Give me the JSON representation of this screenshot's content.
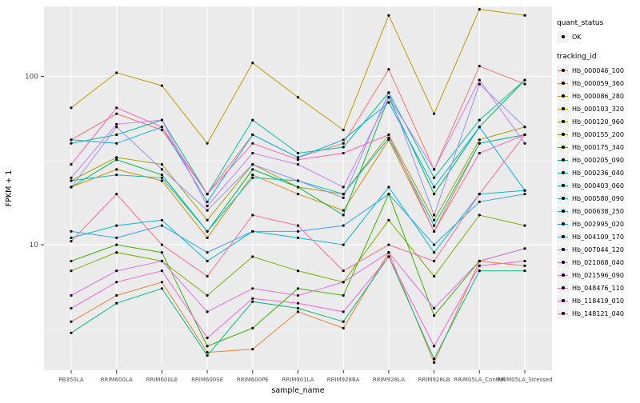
{
  "figure": {
    "background": "#FFFFFF",
    "panel_background": "#EBEBEB",
    "grid_major_color": "#FFFFFF",
    "grid_minor_color": "#F7F7F7",
    "tick_color": "#333333",
    "tick_label_color": "#4D4D4D",
    "axis_title_color": "#000000",
    "point_color": "#000000"
  },
  "chart_data": {
    "type": "line",
    "title": "",
    "xlabel": "sample_name",
    "ylabel": "FPKM + 1",
    "y_scale": "log10",
    "ylim": [
      1.8,
      260
    ],
    "y_ticks": [
      10,
      100
    ],
    "y_minor_ticks": [
      3.1623,
      31.623
    ],
    "grid": true,
    "legend_position": "right",
    "categories": [
      "PB350LA",
      "RRIM600LA",
      "RRIM600LE",
      "RRIM600SE",
      "RRIM600PE",
      "RRIM901LA",
      "RRIM928BA",
      "RRIM928LA",
      "RRIM928LB",
      "RRIM05LA_Control",
      "RRIM05LA_Stressed"
    ],
    "series": [
      {
        "name": "Hb_000046_100",
        "color": "#F8766D",
        "values": [
          42,
          60,
          48,
          20,
          45,
          33,
          40,
          110,
          28,
          115,
          90
        ]
      },
      {
        "name": "Hb_000059_360",
        "color": "#EA8331",
        "values": [
          3.5,
          5,
          6,
          2.3,
          2.4,
          4,
          3.2,
          9,
          2,
          8,
          7.5
        ]
      },
      {
        "name": "Hb_000086_280",
        "color": "#D89000",
        "values": [
          22,
          28,
          24,
          11,
          26,
          20,
          16,
          42,
          12,
          40,
          45
        ]
      },
      {
        "name": "Hb_000103_320",
        "color": "#C09B00",
        "values": [
          65,
          105,
          88,
          40,
          120,
          75,
          48,
          230,
          60,
          250,
          230
        ]
      },
      {
        "name": "Hb_000120_960",
        "color": "#A3A500",
        "values": [
          24,
          33,
          30,
          14,
          30,
          22,
          20,
          45,
          14,
          42,
          50
        ]
      },
      {
        "name": "Hb_000155_200",
        "color": "#7CAE00",
        "values": [
          7,
          9,
          8,
          5,
          8.5,
          7,
          6,
          14,
          6.5,
          15,
          13
        ]
      },
      {
        "name": "Hb_000175_340",
        "color": "#39B600",
        "values": [
          8,
          10,
          9,
          2.5,
          3.2,
          5.5,
          5,
          20,
          3.8,
          8,
          9.5
        ]
      },
      {
        "name": "Hb_000205_090",
        "color": "#00BB4E",
        "values": [
          22,
          32,
          26,
          12,
          28,
          22,
          15,
          75,
          20,
          50,
          95
        ]
      },
      {
        "name": "Hb_000236_040",
        "color": "#00BF7D",
        "values": [
          3,
          4.5,
          5.5,
          2.2,
          4.6,
          4.2,
          3.5,
          8.5,
          2.1,
          7,
          7
        ]
      },
      {
        "name": "Hb_000403_060",
        "color": "#00C1A3",
        "values": [
          40,
          45,
          55,
          20,
          55,
          35,
          38,
          80,
          25,
          55,
          95
        ]
      },
      {
        "name": "Hb_000580_090",
        "color": "#00BFC4",
        "values": [
          24,
          26,
          25,
          12,
          25,
          24,
          20,
          43,
          13,
          40,
          45
        ]
      },
      {
        "name": "Hb_000638_250",
        "color": "#00BAE0",
        "values": [
          11,
          13,
          14,
          8,
          12,
          11,
          10,
          22,
          9,
          20,
          21
        ]
      },
      {
        "name": "Hb_002995_020",
        "color": "#00B0F6",
        "values": [
          42,
          40,
          50,
          18,
          45,
          33,
          42,
          70,
          22,
          50,
          21
        ]
      },
      {
        "name": "Hb_004109_170",
        "color": "#35A2FF",
        "values": [
          12,
          11,
          13,
          9,
          12,
          12,
          13,
          20,
          10,
          18,
          20
        ]
      },
      {
        "name": "Hb_007044_120",
        "color": "#9590FF",
        "values": [
          22,
          50,
          28,
          16,
          30,
          24,
          19,
          80,
          15,
          90,
          50
        ]
      },
      {
        "name": "Hb_021068_040",
        "color": "#C77CFF",
        "values": [
          25,
          52,
          55,
          17,
          35,
          30,
          22,
          75,
          28,
          95,
          40
        ]
      },
      {
        "name": "Hb_021596_090",
        "color": "#E76BF3",
        "values": [
          5,
          7,
          8,
          4,
          5.5,
          5,
          6,
          9,
          4.2,
          8,
          9.5
        ]
      },
      {
        "name": "Hb_048476_110",
        "color": "#FA62DB",
        "values": [
          4.2,
          6,
          7,
          2.8,
          4.8,
          4.5,
          4,
          8.5,
          2.5,
          7.5,
          8
        ]
      },
      {
        "name": "Hb_118419_010",
        "color": "#FF62BC",
        "values": [
          30,
          65,
          50,
          20,
          40,
          32,
          35,
          45,
          12,
          35,
          45
        ]
      },
      {
        "name": "Hb_148121_040",
        "color": "#FF6A98",
        "values": [
          10.5,
          20,
          10,
          6.5,
          15,
          13,
          7,
          10,
          8,
          20,
          45
        ]
      }
    ],
    "legend": {
      "quant_title": "quant_status",
      "quant_items": [
        {
          "label": "OK"
        }
      ],
      "tracking_title": "tracking_id"
    }
  }
}
